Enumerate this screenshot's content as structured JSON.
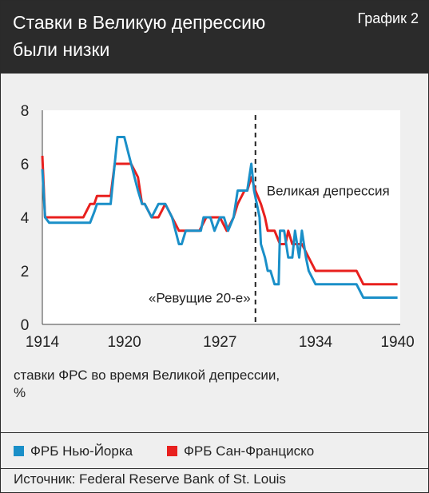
{
  "header": {
    "title_line1": "Ставки в Великую депрессию",
    "title_line2": "были низки",
    "chart_number": "График 2"
  },
  "caption": {
    "line1": "ставки ФРС во время Великой депрессии,",
    "line2": "%"
  },
  "legend": {
    "ny": "ФРБ Нью-Йорка",
    "sf": "ФРБ Сан-Франциско"
  },
  "source": "Источник: Federal Reserve Bank of St. Louis",
  "colors": {
    "ny": "#1a8fc8",
    "sf": "#e8201e",
    "header_bg": "#2b2b2b",
    "panel": "#ffffff"
  },
  "chart_data": {
    "type": "line",
    "title": "Ставки в Великую депрессию были низки",
    "xlabel": "",
    "ylabel": "ставки ФРС во время Великой депрессии, %",
    "xlim": [
      1914,
      1940.2
    ],
    "ylim": [
      0,
      8
    ],
    "x_ticks": [
      1914,
      1920,
      1927,
      1934,
      1940
    ],
    "y_ticks": [
      0,
      2,
      4,
      6,
      8
    ],
    "grid": false,
    "legend_position": "bottom",
    "annotations": [
      {
        "text": "Великая депрессия",
        "x": 1929.5,
        "y": 5
      },
      {
        "text": "«Ревущие 20-е»",
        "x": 1929.2,
        "y": 1
      }
    ],
    "marker_line_x": 1929.6,
    "series": [
      {
        "name": "ФРБ Нью-Йорка",
        "x": [
          1914.0,
          1914.2,
          1914.5,
          1915.0,
          1915.5,
          1916.0,
          1917.0,
          1917.5,
          1917.8,
          1918.0,
          1918.5,
          1919.0,
          1919.3,
          1919.5,
          1920.0,
          1920.5,
          1921.0,
          1921.3,
          1921.5,
          1922.0,
          1922.5,
          1923.0,
          1923.5,
          1924.0,
          1924.2,
          1924.5,
          1924.8,
          1925.0,
          1925.3,
          1925.6,
          1925.8,
          1926.0,
          1926.3,
          1926.6,
          1927.0,
          1927.3,
          1927.6,
          1928.0,
          1928.3,
          1928.8,
          1929.0,
          1929.3,
          1929.5,
          1929.7,
          1929.9,
          1930.0,
          1930.3,
          1930.5,
          1930.7,
          1931.0,
          1931.3,
          1931.4,
          1931.7,
          1932.0,
          1932.3,
          1932.5,
          1932.8,
          1933.0,
          1933.3,
          1933.5,
          1934.0,
          1935.0,
          1936.0,
          1937.0,
          1937.5,
          1938.0,
          1939.0,
          1940.0
        ],
        "values": [
          5.8,
          4.0,
          3.8,
          3.8,
          3.8,
          3.8,
          3.8,
          3.8,
          4.2,
          4.5,
          4.5,
          4.5,
          6.0,
          7.0,
          7.0,
          6.0,
          5.0,
          4.5,
          4.5,
          4.0,
          4.5,
          4.5,
          4.0,
          3.0,
          3.0,
          3.5,
          3.5,
          3.5,
          3.5,
          3.5,
          4.0,
          4.0,
          4.0,
          3.5,
          4.0,
          4.0,
          3.5,
          4.0,
          5.0,
          5.0,
          5.0,
          6.0,
          5.0,
          4.5,
          4.0,
          3.0,
          2.5,
          2.0,
          2.0,
          1.5,
          1.5,
          3.5,
          3.5,
          2.5,
          2.5,
          3.5,
          2.5,
          3.5,
          2.5,
          2.0,
          1.5,
          1.5,
          1.5,
          1.5,
          1.0,
          1.0,
          1.0,
          1.0
        ]
      },
      {
        "name": "ФРБ Сан-Франциско",
        "x": [
          1914.0,
          1914.2,
          1914.5,
          1915.0,
          1916.0,
          1917.0,
          1917.5,
          1917.8,
          1918.0,
          1918.5,
          1919.0,
          1919.3,
          1919.5,
          1920.0,
          1920.5,
          1921.0,
          1921.3,
          1921.5,
          1922.0,
          1922.5,
          1923.0,
          1923.5,
          1924.0,
          1924.5,
          1925.0,
          1925.5,
          1926.0,
          1926.5,
          1927.0,
          1927.5,
          1928.0,
          1928.3,
          1928.8,
          1929.0,
          1929.3,
          1929.6,
          1930.0,
          1930.3,
          1930.5,
          1931.0,
          1931.4,
          1931.8,
          1932.0,
          1932.3,
          1932.5,
          1933.0,
          1933.5,
          1934.0,
          1935.0,
          1936.0,
          1937.0,
          1937.5,
          1938.0,
          1939.0,
          1940.0
        ],
        "values": [
          6.3,
          4.0,
          4.0,
          4.0,
          4.0,
          4.0,
          4.5,
          4.5,
          4.8,
          4.8,
          4.8,
          6.0,
          6.0,
          6.0,
          6.0,
          5.5,
          4.5,
          4.5,
          4.0,
          4.0,
          4.5,
          4.0,
          3.5,
          3.5,
          3.5,
          3.5,
          4.0,
          4.0,
          4.0,
          3.5,
          4.0,
          4.5,
          5.0,
          5.0,
          5.5,
          5.0,
          4.5,
          4.0,
          3.5,
          3.5,
          3.0,
          3.0,
          3.5,
          3.0,
          3.0,
          3.0,
          2.5,
          2.0,
          2.0,
          2.0,
          2.0,
          1.5,
          1.5,
          1.5,
          1.5
        ]
      }
    ]
  }
}
